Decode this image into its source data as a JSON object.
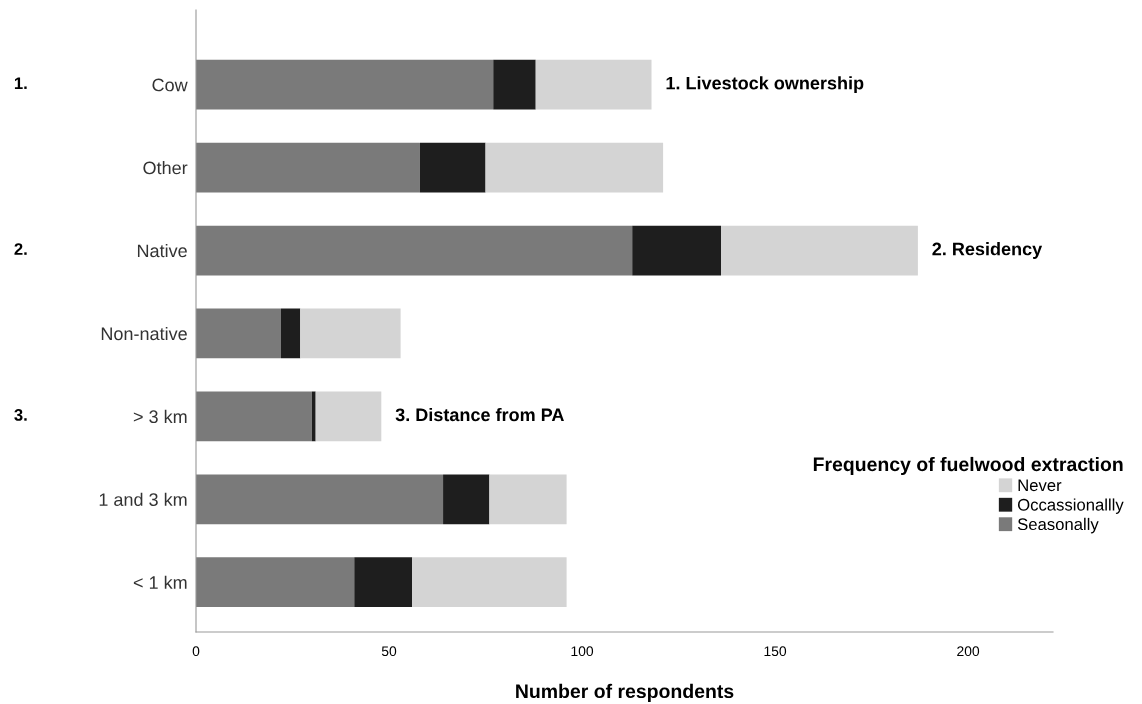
{
  "chart_data": {
    "type": "bar",
    "orientation": "horizontal",
    "stacked": true,
    "categories": [
      "Cow",
      "Other",
      "Native",
      "Non-native",
      "> 3 km",
      "1 and 3 km",
      "< 1 km"
    ],
    "series": [
      {
        "name": "Seasonally",
        "color": "#7a7a7a",
        "values": [
          77,
          58,
          113,
          22,
          30,
          64,
          41
        ]
      },
      {
        "name": "Occassionallly",
        "color": "#1e1e1e",
        "values": [
          11,
          17,
          23,
          5,
          1,
          12,
          15
        ]
      },
      {
        "name": "Never",
        "color": "#d4d4d4",
        "values": [
          30,
          46,
          51,
          26,
          17,
          20,
          40
        ]
      }
    ],
    "xlabel": "Number of respondents",
    "xlim": [
      0,
      222
    ],
    "xticks": [
      0,
      50,
      100,
      150,
      200
    ],
    "legend": "right",
    "legend_title": "Frequency of fuelwood extraction",
    "grid": false,
    "annotations": [
      {
        "text": "1. Livestock ownership",
        "x": 118,
        "y": "Cow"
      },
      {
        "text": "2. Residency",
        "x": 187,
        "y": "Native"
      },
      {
        "text": "3. Distance from PA",
        "x": 48,
        "y": "> 3 km"
      },
      "1.",
      "2.",
      "3."
    ]
  }
}
